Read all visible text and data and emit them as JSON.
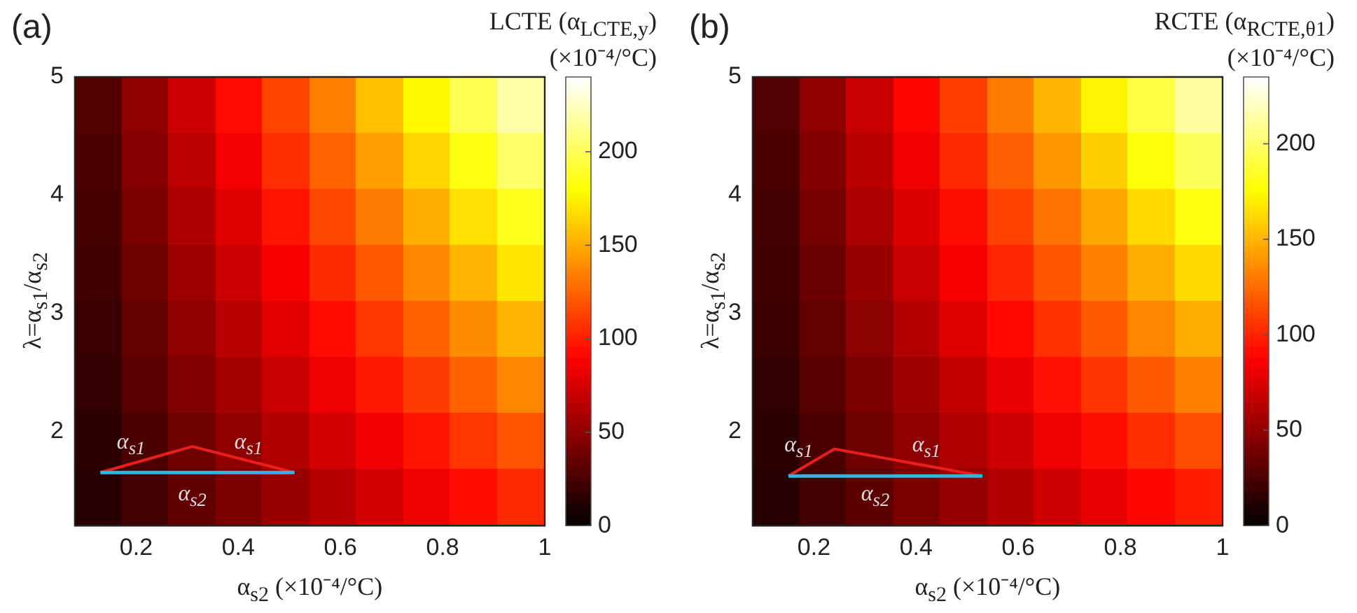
{
  "chart_data": [
    {
      "type": "heatmap",
      "title": "(a)",
      "xlabel": "α$_{s2}$ (×10⁻⁴/°C)",
      "ylabel": "λ=α$_{s1}$/α$_{s2}$",
      "clabel": "LCTE (α$_{LCTE,y}$) (×10⁻⁴/°C)",
      "x": [
        0.126,
        0.218,
        0.31,
        0.402,
        0.494,
        0.586,
        0.678,
        0.77,
        0.862,
        0.954
      ],
      "y": [
        4.76,
        4.29,
        3.81,
        3.34,
        2.86,
        2.39,
        1.91,
        1.44
      ],
      "xlim": [
        0.08,
        1
      ],
      "xticks": [
        0.2,
        0.4,
        0.6,
        0.8,
        1
      ],
      "ylim": [
        1.2,
        5
      ],
      "yticks": [
        2,
        3,
        4,
        5
      ],
      "clim": [
        0,
        240
      ],
      "cticks": [
        0,
        50,
        100,
        150,
        200
      ],
      "cells": [
        [
          29,
          50,
          72,
          93,
          114,
          135,
          157,
          178,
          199,
          220
        ],
        [
          27,
          47,
          66,
          86,
          106,
          125,
          145,
          165,
          184,
          204
        ],
        [
          25,
          43,
          61,
          79,
          97,
          115,
          133,
          151,
          169,
          187
        ],
        [
          23,
          39,
          55,
          72,
          88,
          105,
          121,
          138,
          154,
          171
        ],
        [
          20,
          35,
          50,
          65,
          80,
          94,
          109,
          124,
          139,
          154
        ],
        [
          18,
          31,
          45,
          58,
          71,
          84,
          98,
          111,
          124,
          137
        ],
        [
          16,
          27,
          39,
          51,
          62,
          74,
          85,
          97,
          109,
          120
        ],
        [
          14,
          24,
          34,
          44,
          54,
          64,
          74,
          84,
          94,
          104
        ]
      ],
      "annotations": [
        "α$_{s1}$",
        "α$_{s1}$",
        "α$_{s2}$"
      ]
    },
    {
      "type": "heatmap",
      "title": "(b)",
      "xlabel": "α$_{s2}$ (×10⁻⁴/°C)",
      "ylabel": "λ=α$_{s1}$/α$_{s2}$",
      "clabel": "RCTE (α$_{RCTE,θ1}$) (×10⁻⁴/°C)",
      "x": [
        0.126,
        0.218,
        0.31,
        0.402,
        0.494,
        0.586,
        0.678,
        0.77,
        0.862,
        0.954
      ],
      "y": [
        4.76,
        4.29,
        3.81,
        3.34,
        2.86,
        2.39,
        1.91,
        1.44
      ],
      "xlim": [
        0.08,
        1
      ],
      "xticks": [
        0.2,
        0.4,
        0.6,
        0.8,
        1
      ],
      "ylim": [
        1.2,
        5
      ],
      "yticks": [
        2,
        3,
        4,
        5
      ],
      "clim": [
        0,
        235
      ],
      "cticks": [
        0,
        50,
        100,
        150,
        200
      ],
      "cells": [
        [
          28,
          49,
          69,
          90,
          110,
          131,
          151,
          172,
          192,
          213
        ],
        [
          26,
          45,
          64,
          83,
          102,
          121,
          140,
          159,
          178,
          197
        ],
        [
          24,
          41,
          59,
          76,
          93,
          111,
          128,
          146,
          163,
          180
        ],
        [
          22,
          37,
          53,
          69,
          85,
          101,
          117,
          132,
          148,
          164
        ],
        [
          20,
          34,
          48,
          62,
          77,
          91,
          105,
          119,
          134,
          148
        ],
        [
          17,
          30,
          43,
          55,
          68,
          81,
          94,
          106,
          119,
          132
        ],
        [
          15,
          26,
          38,
          49,
          60,
          71,
          82,
          93,
          104,
          115
        ],
        [
          13,
          23,
          32,
          42,
          51,
          61,
          71,
          80,
          90,
          99
        ]
      ],
      "annotations": [
        "α$_{s1}$",
        "α$_{s1}$",
        "α$_{s2}$"
      ]
    }
  ]
}
